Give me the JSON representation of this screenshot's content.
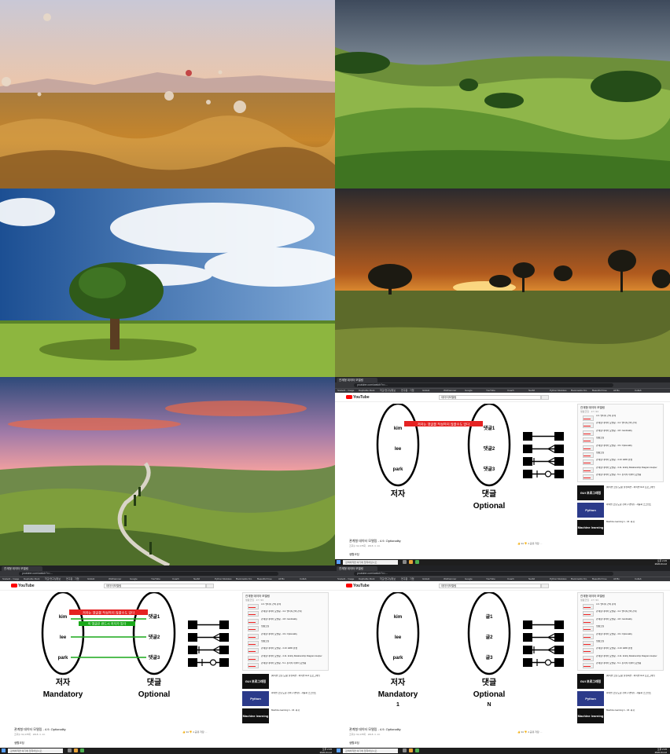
{
  "wallpapers": [
    {
      "name": "balloons-canyon"
    },
    {
      "name": "green-hills"
    },
    {
      "name": "single-tree-sky"
    },
    {
      "name": "sunset-meadow"
    },
    {
      "name": "tuscany-road"
    }
  ],
  "colors": {
    "yt_red": "#ff0000",
    "bar_red": "#e52222",
    "line_green": "#1aa81a",
    "chrome_dark": "#202124"
  },
  "browser": {
    "tab_label": "관계형 데이터 모델링",
    "url": "youtube.com/watch?v=...",
    "bookmarks": [
      "ScaleAI - Image",
      "Daphable Mark",
      "학교/연구실정보",
      "연구원 · 기업",
      "GitHub",
      "Wolframmer",
      "Google",
      "YouTube",
      "Coach",
      "NetAll",
      "Python Modules",
      "Bookmarks Fro",
      "Beautiful Free",
      "All Bo",
      "Collab"
    ]
  },
  "youtube": {
    "logo": "YouTube",
    "search_value": "데이터모델링"
  },
  "panels": [
    {
      "video_title": "관계형 데이터 모델링 - 4.9. Optionality",
      "meta": "조회수 62,478회 · 2018. 4. 14.",
      "actions": "👍 94  👎 4  공유  저장  ···",
      "channel": "생활코딩",
      "diagram": {
        "left_rows": [
          "kim",
          "lee",
          "park"
        ],
        "right_rows": [
          "댓글1",
          "댓글2",
          "댓글3"
        ],
        "left_label": "저자",
        "left_sub": "",
        "left_sub2": "",
        "right_label": "댓글",
        "right_sub": "Optional",
        "right_sub2": "",
        "red_note": "저자는 댓글을 작성하지 않을수도 있다",
        "green_note": ""
      }
    },
    {
      "video_title": "관계형 데이터 모델링 - 4.9. Optionality",
      "meta": "조회수 62,478회 · 2018. 4. 14.",
      "actions": "👍 94  👎 4  공유  저장  ···",
      "channel": "생활코딩",
      "diagram": {
        "left_rows": [
          "kim",
          "lee",
          "park"
        ],
        "right_rows": [
          "댓글1",
          "댓글2",
          "댓글3"
        ],
        "left_label": "저자",
        "left_sub": "Mandatory",
        "left_sub2": "",
        "right_label": "댓글",
        "right_sub": "Optional",
        "right_sub2": "",
        "red_note": "저자는 댓글을 작성하지 않을수도 있다",
        "green_note": "이 댓글은 반드시 저자가 있다"
      }
    },
    {
      "video_title": "관계형 데이터 모델링 - 4.9. Optionality",
      "meta": "조회수 62,478회 · 2018. 4. 14.",
      "actions": "👍 94  👎 4  공유  저장  ···",
      "channel": "생활코딩",
      "diagram": {
        "left_rows": [
          "kim",
          "lee",
          "park"
        ],
        "right_rows": [
          "글1",
          "글2",
          "글3"
        ],
        "left_label": "저자",
        "left_sub": "Mandatory",
        "left_sub2": "1",
        "right_label": "댓글",
        "right_sub": "Optional",
        "right_sub2": "N",
        "red_note": "",
        "green_note": ""
      }
    }
  ],
  "playlist": {
    "title": "관계형 데이터 모델링",
    "sub": "생활코딩 · 17 / 33",
    "items": [
      "4.3. 엔티티 간의 관계",
      "관계형 데이터 모델링 - 4.4. 엔티티간의 관계",
      "관계형 데이터 모델링 - 4.8. Cardinality",
      "생활코딩",
      "관계형 데이터 모델링 - 4.9. Optionality",
      "생활코딩",
      "관계형 데이터 모델링 - 4.10. ERD 완성",
      "관계형 데이터 모델링 - 4.11. Entity Relationship Diagram Helper",
      "관계형 데이터 모델링 - 5.1. 논리적 데이터 모델링"
    ]
  },
  "recommended": [
    {
      "thumb": "GUI 프로그래밍",
      "text": "[파이썬 코딩 도장] 풀컬렉션 - 파이썬 GUI 프로그래밍"
    },
    {
      "thumb": "Python",
      "text": "파이썬 코딩 도장 강의 (기본편) - 자동화 스크립트"
    },
    {
      "thumb": "Machine learning",
      "text": "Machine learning 1 - 16. 회귀"
    }
  ],
  "taskbar": {
    "search": "검색하려면 여기에 입력하십시오.",
    "time": "오후 2:15",
    "date": "2020-04-12"
  }
}
